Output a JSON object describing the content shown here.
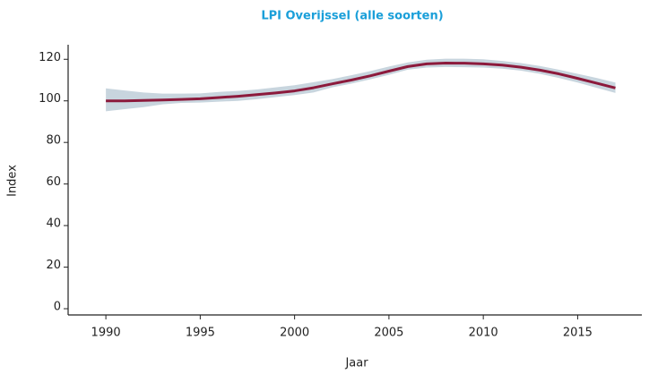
{
  "chart_data": {
    "type": "line",
    "title": "LPI Overijssel (alle soorten)",
    "x_label": "Jaar",
    "y_label": "Index",
    "x": [
      1990,
      1991,
      1992,
      1993,
      1994,
      1995,
      1996,
      1997,
      1998,
      1999,
      2000,
      2001,
      2002,
      2003,
      2004,
      2005,
      2006,
      2007,
      2008,
      2009,
      2010,
      2011,
      2012,
      2013,
      2014,
      2015,
      2016,
      2017
    ],
    "series": [
      {
        "color": "#8c1a3c",
        "band_color": "#c8d5de",
        "values": [
          100,
          100,
          100.2,
          100.4,
          100.7,
          101,
          101.6,
          102.2,
          103,
          103.8,
          104.8,
          106.3,
          108.2,
          110,
          112,
          114.3,
          116.5,
          117.8,
          118.2,
          118.1,
          117.8,
          117.2,
          116.2,
          114.8,
          113,
          110.8,
          108.5,
          106.2
        ],
        "lower": [
          95,
          96,
          97,
          98.3,
          99,
          99.2,
          99.6,
          100,
          100.8,
          101.8,
          102.8,
          104,
          106.5,
          108.3,
          110.3,
          112.5,
          115,
          116,
          116.3,
          116.2,
          116,
          115.5,
          114.5,
          113,
          111,
          108.8,
          106.3,
          103.8
        ],
        "upper": [
          106,
          105,
          104,
          103.5,
          103.5,
          103.6,
          104.3,
          104.8,
          105.5,
          106.5,
          107.5,
          109,
          110.5,
          112.3,
          114.3,
          116.5,
          118.5,
          119.8,
          120.3,
          120.3,
          120,
          119.2,
          118.2,
          116.8,
          115,
          113,
          111,
          108.8
        ]
      }
    ],
    "xlim": [
      1988,
      2018.4
    ],
    "xticks": [
      1990,
      1995,
      2000,
      2005,
      2010,
      2015
    ],
    "ylim": [
      -3,
      127
    ],
    "yticks": [
      0,
      20,
      40,
      60,
      80,
      100,
      120
    ],
    "grid": false
  }
}
